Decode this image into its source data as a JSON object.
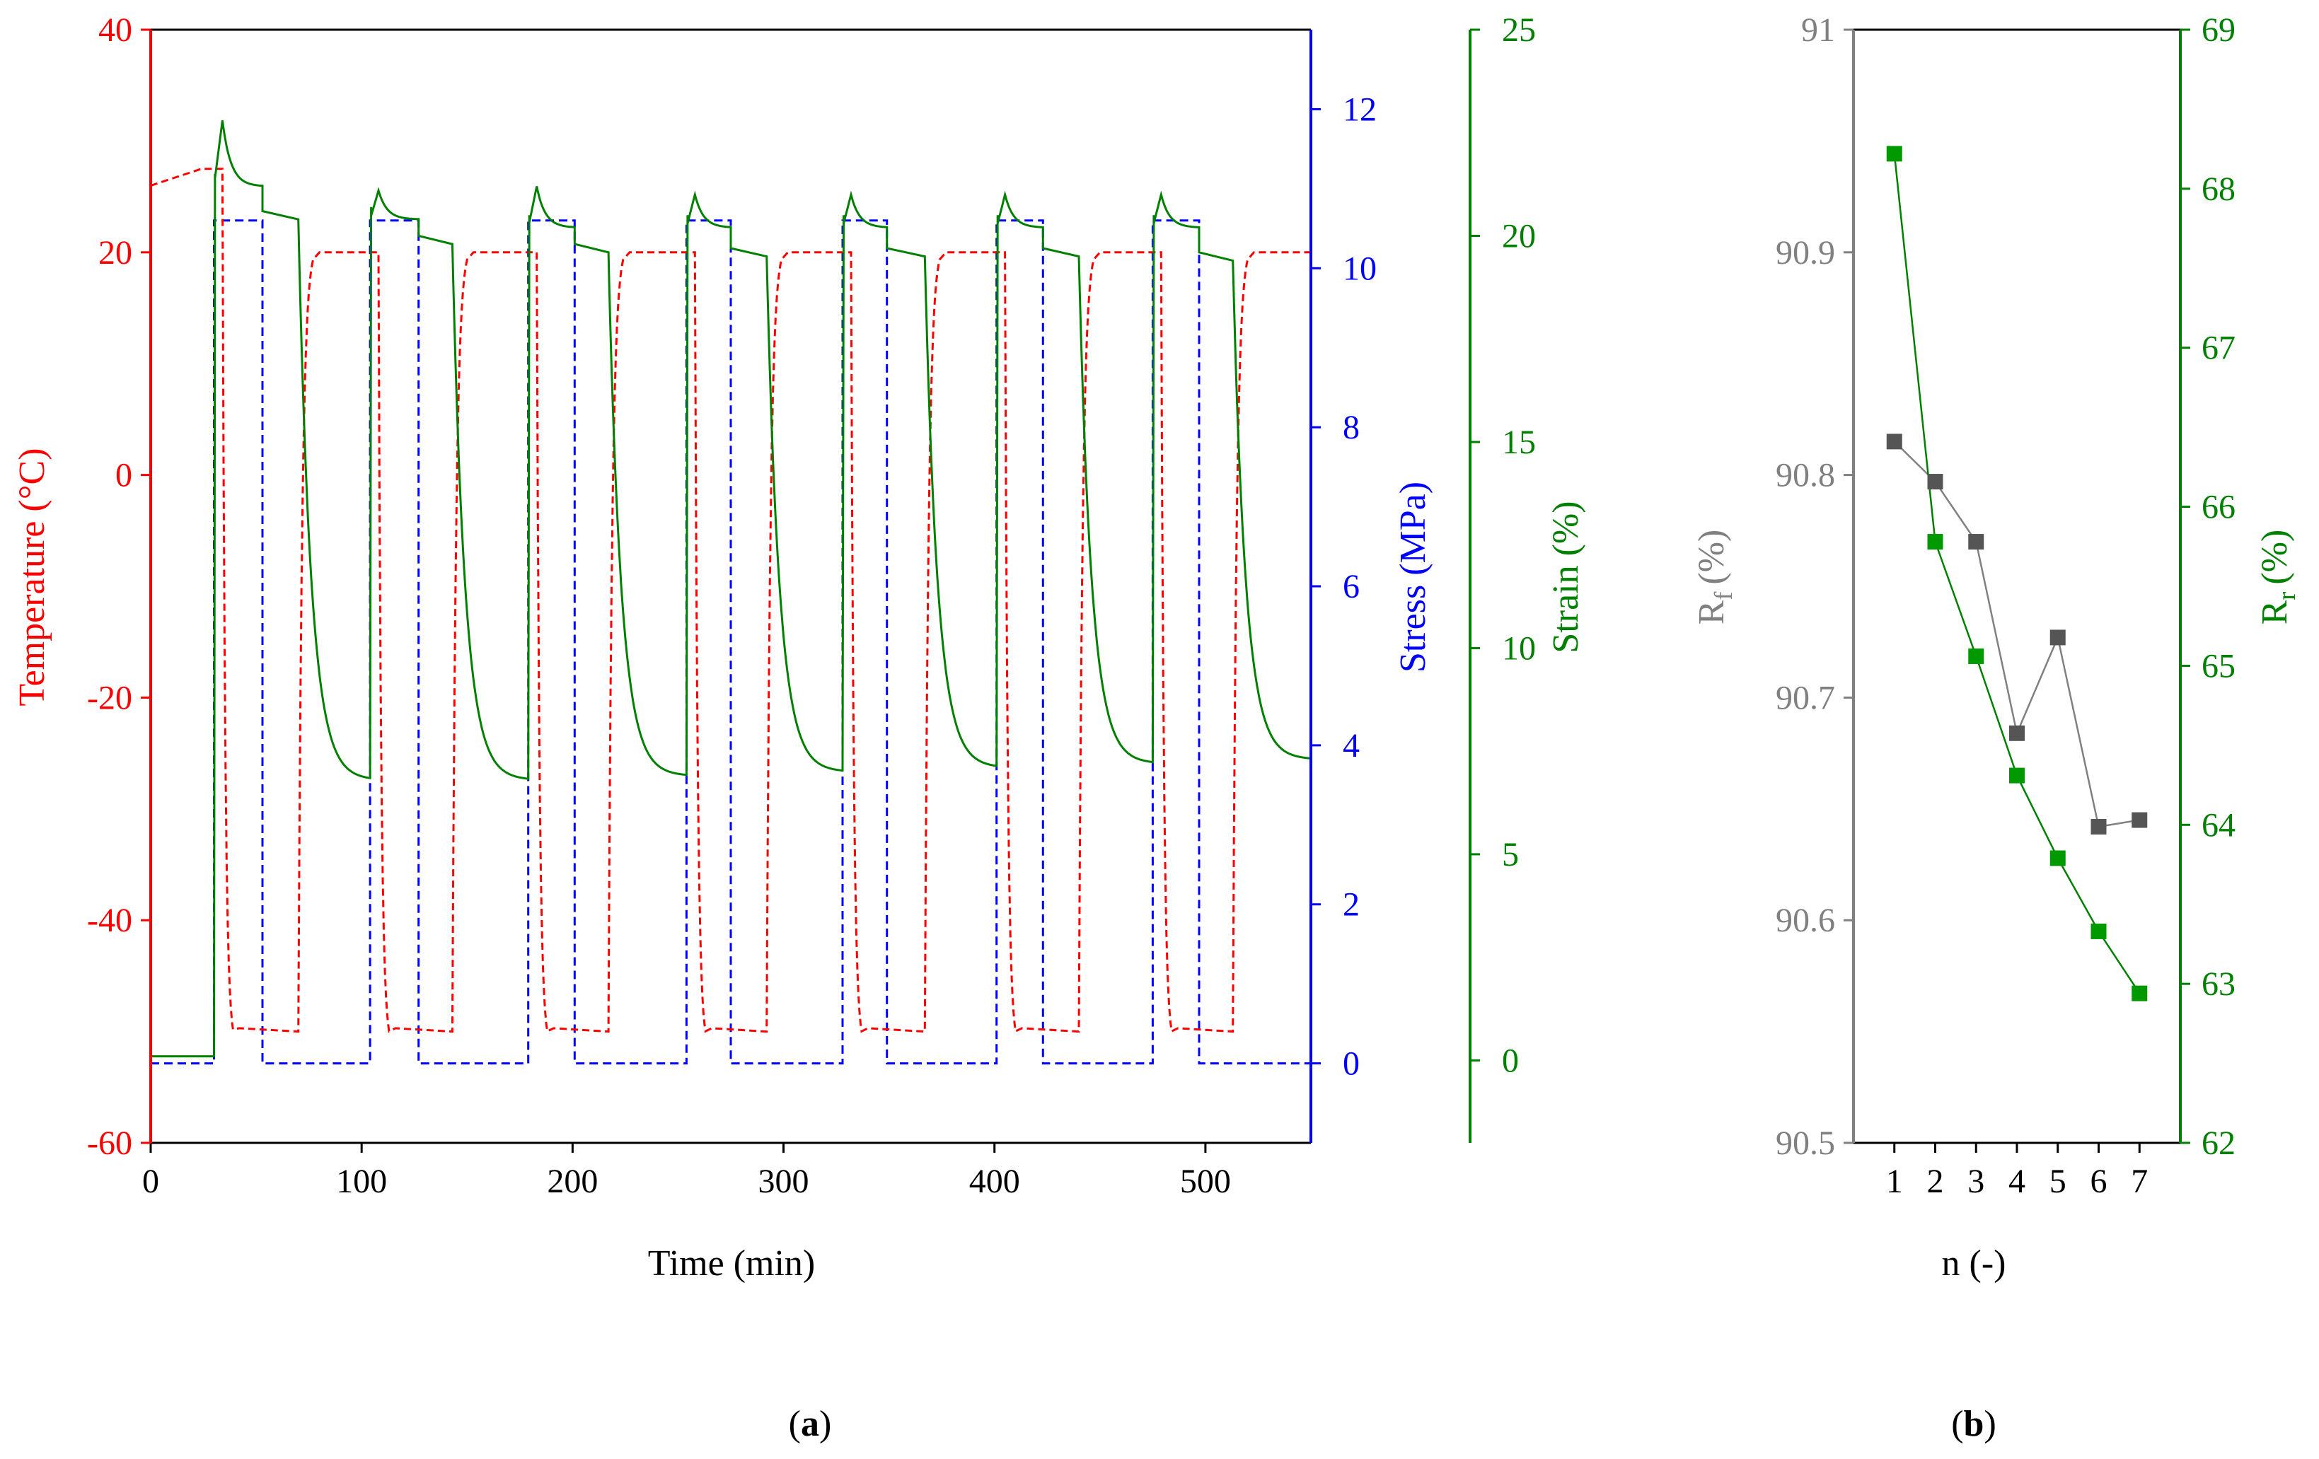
{
  "colors": {
    "temperature": "#ff0000",
    "stress": "#0000ff",
    "strain": "#008000",
    "rf": "#808080",
    "frame": "#000000"
  },
  "panel_labels": {
    "a": {
      "open": "(",
      "letter": "a",
      "close": ")"
    },
    "b": {
      "open": "(",
      "letter": "b",
      "close": ")"
    }
  },
  "chart_data": [
    {
      "id": "panel-a",
      "type": "line",
      "xlabel": "Time (min)",
      "xlim": [
        0,
        550
      ],
      "xticks": [
        0,
        100,
        200,
        300,
        400,
        500
      ],
      "axes": {
        "temperature": {
          "label": "Temperature (°C)",
          "ylim": [
            -60,
            40
          ],
          "ticks": [
            -60,
            -40,
            -20,
            0,
            20,
            40
          ]
        },
        "stress": {
          "label": "Stress (MPa)",
          "ylim": [
            -1,
            13
          ],
          "ticks": [
            0,
            2,
            4,
            6,
            8,
            10,
            12
          ]
        },
        "strain": {
          "label": "Strain (%)",
          "ylim": [
            -2,
            25
          ],
          "ticks": [
            0,
            5,
            10,
            15,
            20,
            25
          ]
        }
      },
      "cycles": [
        {
          "load_on": 30,
          "cool": 34,
          "unload": 53,
          "heat": 70,
          "load_off": 104,
          "strain_peak": 22.8,
          "strain_step": 21.2,
          "strain_plateau": 20.4,
          "strain_end": 6.8
        },
        {
          "load_on": 104,
          "cool": 108,
          "unload": 127,
          "heat": 143,
          "load_off": 179,
          "strain_peak": 21.1,
          "strain_step": 20.4,
          "strain_plateau": 19.8,
          "strain_end": 6.8
        },
        {
          "load_on": 179,
          "cool": 183,
          "unload": 201,
          "heat": 217,
          "load_off": 254,
          "strain_peak": 21.2,
          "strain_step": 20.2,
          "strain_plateau": 19.6,
          "strain_end": 6.9
        },
        {
          "load_on": 254,
          "cool": 258,
          "unload": 275,
          "heat": 292,
          "load_off": 328,
          "strain_peak": 21.0,
          "strain_step": 20.2,
          "strain_plateau": 19.5,
          "strain_end": 7.0
        },
        {
          "load_on": 328,
          "cool": 332,
          "unload": 349,
          "heat": 367,
          "load_off": 401,
          "strain_peak": 21.0,
          "strain_step": 20.2,
          "strain_plateau": 19.5,
          "strain_end": 7.1
        },
        {
          "load_on": 401,
          "cool": 405,
          "unload": 423,
          "heat": 440,
          "load_off": 475,
          "strain_peak": 21.0,
          "strain_step": 20.2,
          "strain_plateau": 19.5,
          "strain_end": 7.2
        },
        {
          "load_on": 475,
          "cool": 479,
          "unload": 497,
          "heat": 513,
          "load_off": 550,
          "strain_peak": 21.0,
          "strain_step": 20.2,
          "strain_plateau": 19.4,
          "strain_end": 7.3
        }
      ],
      "series": [
        {
          "name": "Temperature",
          "axis": "temperature",
          "style": "dashed",
          "levels": {
            "initial": 26,
            "pre_load": 27.5,
            "low": -50,
            "high": 20,
            "undershoot": -51.5
          }
        },
        {
          "name": "Stress",
          "axis": "stress",
          "style": "dashed",
          "levels": {
            "off": 0,
            "on": 10.6
          }
        },
        {
          "name": "Strain",
          "axis": "strain",
          "style": "solid",
          "levels": {
            "initial": 0.1
          }
        }
      ]
    },
    {
      "id": "panel-b",
      "type": "line",
      "xlabel": "n (-)",
      "xlim": [
        0,
        8
      ],
      "xticks": [
        1,
        2,
        3,
        4,
        5,
        6,
        7
      ],
      "axes": {
        "rf": {
          "label_main": "R",
          "label_sub": "f",
          "label_units": "(%)",
          "ylim": [
            90.5,
            91.0
          ],
          "ticks": [
            "90.5",
            "90.6",
            "90.7",
            "90.8",
            "90.9",
            "91"
          ]
        },
        "rr": {
          "label_main": "R",
          "label_sub": "r",
          "label_units": "(%)",
          "ylim": [
            62,
            69
          ],
          "ticks": [
            "62",
            "63",
            "64",
            "65",
            "66",
            "67",
            "68",
            "69"
          ]
        }
      },
      "series": [
        {
          "name": "Rf",
          "axis": "rf",
          "x": [
            1,
            2,
            3,
            4,
            5,
            6,
            7
          ],
          "values": [
            90.815,
            90.797,
            90.77,
            90.684,
            90.727,
            90.642,
            90.645
          ]
        },
        {
          "name": "Rr",
          "axis": "rr",
          "x": [
            1,
            2,
            3,
            4,
            5,
            6,
            7
          ],
          "values": [
            68.22,
            65.78,
            65.06,
            64.31,
            63.79,
            63.33,
            62.94
          ]
        }
      ]
    }
  ]
}
